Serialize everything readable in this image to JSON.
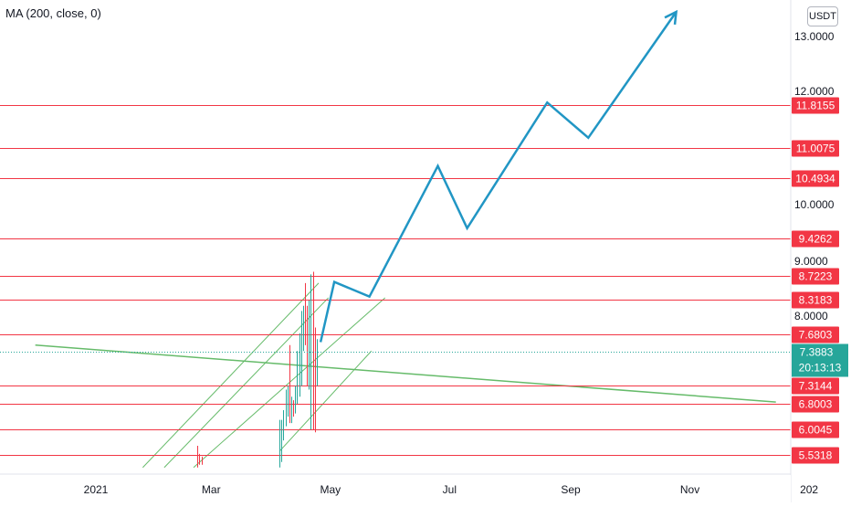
{
  "indicator": {
    "label": "MA (200, close, 0)"
  },
  "currency": "USDT",
  "colors": {
    "level_line": "#f23645",
    "projection": "#2196c4",
    "channel": "#66bb6a",
    "ma_line": "#66bb6a",
    "current_badge": "#26a69a",
    "candle_up": "#26a69a",
    "candle_down": "#f23645",
    "axis_text": "#131722",
    "grid_border": "#e0e3eb"
  },
  "chart_data": {
    "type": "line",
    "title": "",
    "price_axis_ticks": [
      "13.0000",
      "12.0000",
      "10.0000",
      "9.0000",
      "8.0000"
    ],
    "time_axis_ticks": [
      "2021",
      "Mar",
      "May",
      "Jul",
      "Sep",
      "Nov",
      "202"
    ],
    "horizontal_levels": [
      "11.8155",
      "11.0075",
      "10.4934",
      "9.4262",
      "8.7223",
      "8.3183",
      "7.6803",
      "7.3144",
      "6.8003",
      "6.0045",
      "5.5318"
    ],
    "current_price": {
      "value": "7.3883",
      "countdown": "20:13:13"
    },
    "projection_path": {
      "x": [
        "2021-04-26",
        "2021-05-03",
        "2021-05-21",
        "2021-06-25",
        "2021-07-10",
        "2021-08-20",
        "2021-09-10",
        "2021-10-25"
      ],
      "y": [
        7.55,
        8.62,
        8.37,
        10.7,
        9.6,
        11.85,
        11.2,
        13.45
      ]
    },
    "ma_line": {
      "x": [
        "2020-12-01",
        "2021-12-15"
      ],
      "y": [
        7.5,
        6.85
      ]
    },
    "channel_lines": [
      {
        "x": [
          "2021-01-25",
          "2021-04-25"
        ],
        "y": [
          5.3,
          8.6
        ]
      },
      {
        "x": [
          "2021-02-05",
          "2021-04-30"
        ],
        "y": [
          5.3,
          8.35
        ]
      },
      {
        "x": [
          "2021-02-20",
          "2021-05-29"
        ],
        "y": [
          5.3,
          8.35
        ]
      },
      {
        "x": [
          "2021-04-05",
          "2021-05-22"
        ],
        "y": [
          5.6,
          7.4
        ]
      }
    ],
    "candles": {
      "x": [
        "2021-02-22",
        "2021-02-23",
        "2021-02-24",
        "2021-04-05",
        "2021-04-06",
        "2021-04-07",
        "2021-04-08",
        "2021-04-09",
        "2021-04-10",
        "2021-04-11",
        "2021-04-12",
        "2021-04-13",
        "2021-04-14",
        "2021-04-15",
        "2021-04-16",
        "2021-04-17",
        "2021-04-18",
        "2021-04-19",
        "2021-04-20",
        "2021-04-21",
        "2021-04-22",
        "2021-04-23",
        "2021-04-24"
      ],
      "open": [
        5.5,
        5.45,
        5.45,
        5.4,
        5.5,
        5.9,
        6.2,
        6.5,
        7.1,
        6.3,
        6.7,
        6.6,
        7.0,
        7.1,
        7.4,
        7.6,
        8.0,
        7.5,
        7.4,
        8.1,
        8.5,
        7.6,
        7.4
      ],
      "high": [
        5.7,
        5.55,
        5.5,
        6.3,
        6.3,
        6.6,
        7.2,
        7.3,
        7.5,
        7.0,
        6.9,
        7.3,
        7.4,
        7.7,
        8.1,
        8.2,
        8.6,
        8.2,
        8.3,
        8.75,
        8.8,
        7.8,
        7.6
      ],
      "low": [
        5.3,
        5.35,
        5.35,
        5.3,
        5.4,
        5.8,
        6.1,
        6.4,
        6.2,
        6.2,
        6.4,
        6.5,
        6.8,
        7.0,
        7.3,
        7.4,
        7.5,
        7.3,
        7.2,
        6.0,
        6.0,
        5.95,
        7.3
      ],
      "close": [
        5.45,
        5.4,
        5.4,
        6.1,
        5.9,
        6.4,
        6.6,
        7.2,
        6.3,
        6.8,
        6.6,
        7.0,
        7.3,
        7.6,
        7.5,
        8.0,
        7.5,
        7.4,
        8.1,
        8.5,
        7.6,
        7.3,
        7.55
      ]
    }
  }
}
